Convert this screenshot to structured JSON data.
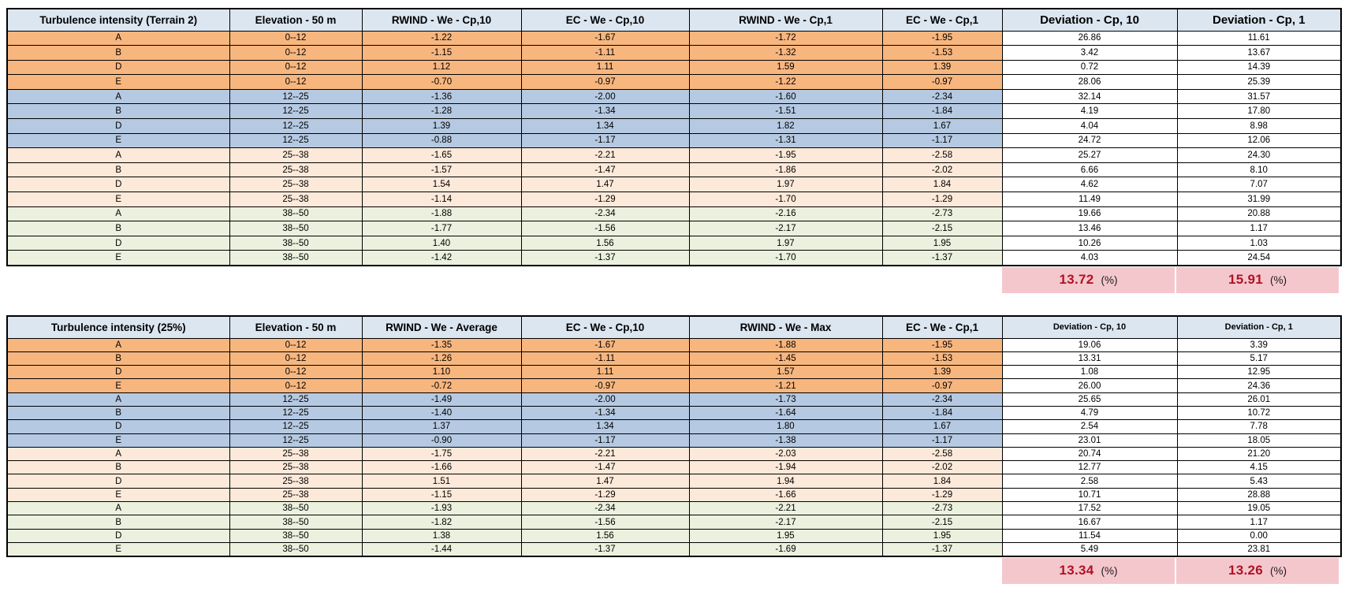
{
  "colors": {
    "header_bg": "#DCE6F1",
    "band_orange": "#F8B67F",
    "band_blue": "#B5C9E2",
    "band_peach": "#FDE9D9",
    "band_green": "#EBF1DE",
    "summary_bg": "#F4C7CD",
    "summary_value": "#B01226",
    "grid": "#000000"
  },
  "chart_data": [
    {
      "type": "table",
      "title": "Turbulence intensity (Terrain 2)",
      "columns": [
        "Turbulence intensity (Terrain 2)",
        "Elevation - 50 m",
        "RWIND - We - Cp,10",
        "EC - We - Cp,10",
        "RWIND - We - Cp,1",
        "EC - We - Cp,1",
        "Deviation - Cp, 10",
        "Deviation - Cp, 1"
      ],
      "rows": [
        {
          "category": "A",
          "elevation": "0--12",
          "band": "orange",
          "values": [
            "-1.22",
            "-1.67",
            "-1.72",
            "-1.95",
            "26.86",
            "11.61"
          ]
        },
        {
          "category": "B",
          "elevation": "0--12",
          "band": "orange",
          "values": [
            "-1.15",
            "-1.11",
            "-1.32",
            "-1.53",
            "3.42",
            "13.67"
          ]
        },
        {
          "category": "D",
          "elevation": "0--12",
          "band": "orange",
          "values": [
            "1.12",
            "1.11",
            "1.59",
            "1.39",
            "0.72",
            "14.39"
          ]
        },
        {
          "category": "E",
          "elevation": "0--12",
          "band": "orange",
          "values": [
            "-0.70",
            "-0.97",
            "-1.22",
            "-0.97",
            "28.06",
            "25.39"
          ]
        },
        {
          "category": "A",
          "elevation": "12--25",
          "band": "blue",
          "values": [
            "-1.36",
            "-2.00",
            "-1.60",
            "-2.34",
            "32.14",
            "31.57"
          ]
        },
        {
          "category": "B",
          "elevation": "12--25",
          "band": "blue",
          "values": [
            "-1.28",
            "-1.34",
            "-1.51",
            "-1.84",
            "4.19",
            "17.80"
          ]
        },
        {
          "category": "D",
          "elevation": "12--25",
          "band": "blue",
          "values": [
            "1.39",
            "1.34",
            "1.82",
            "1.67",
            "4.04",
            "8.98"
          ]
        },
        {
          "category": "E",
          "elevation": "12--25",
          "band": "blue",
          "values": [
            "-0.88",
            "-1.17",
            "-1.31",
            "-1.17",
            "24.72",
            "12.06"
          ]
        },
        {
          "category": "A",
          "elevation": "25--38",
          "band": "peach",
          "values": [
            "-1.65",
            "-2.21",
            "-1.95",
            "-2.58",
            "25.27",
            "24.30"
          ]
        },
        {
          "category": "B",
          "elevation": "25--38",
          "band": "peach",
          "values": [
            "-1.57",
            "-1.47",
            "-1.86",
            "-2.02",
            "6.66",
            "8.10"
          ]
        },
        {
          "category": "D",
          "elevation": "25--38",
          "band": "peach",
          "values": [
            "1.54",
            "1.47",
            "1.97",
            "1.84",
            "4.62",
            "7.07"
          ]
        },
        {
          "category": "E",
          "elevation": "25--38",
          "band": "peach",
          "values": [
            "-1.14",
            "-1.29",
            "-1.70",
            "-1.29",
            "11.49",
            "31.99"
          ]
        },
        {
          "category": "A",
          "elevation": "38--50",
          "band": "green",
          "values": [
            "-1.88",
            "-2.34",
            "-2.16",
            "-2.73",
            "19.66",
            "20.88"
          ]
        },
        {
          "category": "B",
          "elevation": "38--50",
          "band": "green",
          "values": [
            "-1.77",
            "-1.56",
            "-2.17",
            "-2.15",
            "13.46",
            "1.17"
          ]
        },
        {
          "category": "D",
          "elevation": "38--50",
          "band": "green",
          "values": [
            "1.40",
            "1.56",
            "1.97",
            "1.95",
            "10.26",
            "1.03"
          ]
        },
        {
          "category": "E",
          "elevation": "38--50",
          "band": "green",
          "values": [
            "-1.42",
            "-1.37",
            "-1.70",
            "-1.37",
            "4.03",
            "24.54"
          ]
        }
      ],
      "summary": {
        "deviation_cp10": "13.72",
        "deviation_cp1": "15.91",
        "unit_label": "(%)"
      }
    },
    {
      "type": "table",
      "title": "Turbulence intensity (25%)",
      "columns": [
        "Turbulence intensity (25%)",
        "Elevation - 50 m",
        "RWIND - We - Average",
        "EC - We - Cp,10",
        "RWIND - We - Max",
        "EC - We - Cp,1",
        "Deviation - Cp, 10",
        "Deviation - Cp, 1"
      ],
      "rows": [
        {
          "category": "A",
          "elevation": "0--12",
          "band": "orange",
          "values": [
            "-1.35",
            "-1.67",
            "-1.88",
            "-1.95",
            "19.06",
            "3.39"
          ]
        },
        {
          "category": "B",
          "elevation": "0--12",
          "band": "orange",
          "values": [
            "-1.26",
            "-1.11",
            "-1.45",
            "-1.53",
            "13.31",
            "5.17"
          ]
        },
        {
          "category": "D",
          "elevation": "0--12",
          "band": "orange",
          "values": [
            "1.10",
            "1.11",
            "1.57",
            "1.39",
            "1.08",
            "12.95"
          ]
        },
        {
          "category": "E",
          "elevation": "0--12",
          "band": "orange",
          "values": [
            "-0.72",
            "-0.97",
            "-1.21",
            "-0.97",
            "26.00",
            "24.36"
          ]
        },
        {
          "category": "A",
          "elevation": "12--25",
          "band": "blue",
          "values": [
            "-1.49",
            "-2.00",
            "-1.73",
            "-2.34",
            "25.65",
            "26.01"
          ]
        },
        {
          "category": "B",
          "elevation": "12--25",
          "band": "blue",
          "values": [
            "-1.40",
            "-1.34",
            "-1.64",
            "-1.84",
            "4.79",
            "10.72"
          ]
        },
        {
          "category": "D",
          "elevation": "12--25",
          "band": "blue",
          "values": [
            "1.37",
            "1.34",
            "1.80",
            "1.67",
            "2.54",
            "7.78"
          ]
        },
        {
          "category": "E",
          "elevation": "12--25",
          "band": "blue",
          "values": [
            "-0.90",
            "-1.17",
            "-1.38",
            "-1.17",
            "23.01",
            "18.05"
          ]
        },
        {
          "category": "A",
          "elevation": "25--38",
          "band": "peach",
          "values": [
            "-1.75",
            "-2.21",
            "-2.03",
            "-2.58",
            "20.74",
            "21.20"
          ]
        },
        {
          "category": "B",
          "elevation": "25--38",
          "band": "peach",
          "values": [
            "-1.66",
            "-1.47",
            "-1.94",
            "-2.02",
            "12.77",
            "4.15"
          ]
        },
        {
          "category": "D",
          "elevation": "25--38",
          "band": "peach",
          "values": [
            "1.51",
            "1.47",
            "1.94",
            "1.84",
            "2.58",
            "5.43"
          ]
        },
        {
          "category": "E",
          "elevation": "25--38",
          "band": "peach",
          "values": [
            "-1.15",
            "-1.29",
            "-1.66",
            "-1.29",
            "10.71",
            "28.88"
          ]
        },
        {
          "category": "A",
          "elevation": "38--50",
          "band": "green",
          "values": [
            "-1.93",
            "-2.34",
            "-2.21",
            "-2.73",
            "17.52",
            "19.05"
          ]
        },
        {
          "category": "B",
          "elevation": "38--50",
          "band": "green",
          "values": [
            "-1.82",
            "-1.56",
            "-2.17",
            "-2.15",
            "16.67",
            "1.17"
          ]
        },
        {
          "category": "D",
          "elevation": "38--50",
          "band": "green",
          "values": [
            "1.38",
            "1.56",
            "1.95",
            "1.95",
            "11.54",
            "0.00"
          ]
        },
        {
          "category": "E",
          "elevation": "38--50",
          "band": "green",
          "values": [
            "-1.44",
            "-1.37",
            "-1.69",
            "-1.37",
            "5.49",
            "23.81"
          ]
        }
      ],
      "summary": {
        "deviation_cp10": "13.34",
        "deviation_cp1": "13.26",
        "unit_label": "(%)"
      }
    }
  ]
}
